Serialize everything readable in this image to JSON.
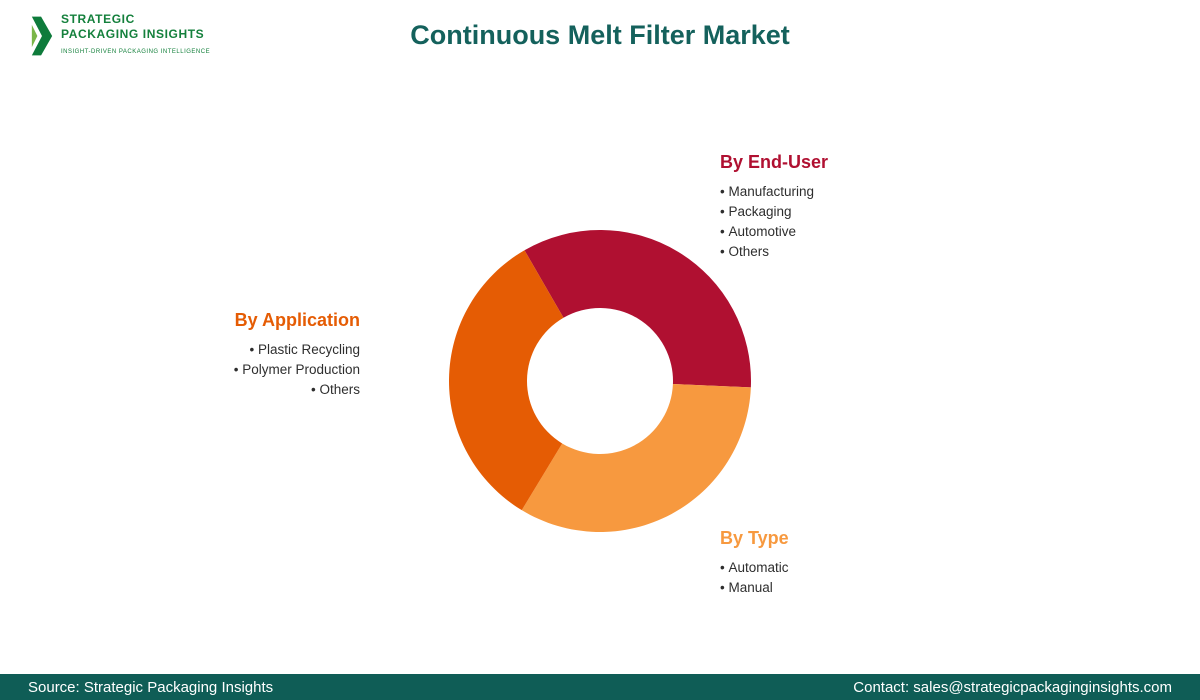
{
  "header": {
    "title": "Continuous Melt Filter Market",
    "logo": {
      "line1": "STRATEGIC",
      "line2": "PACKAGING INSIGHTS",
      "tagline": "INSIGHT-DRIVEN PACKAGING INTELLIGENCE"
    }
  },
  "chart_data": {
    "type": "pie",
    "donut": true,
    "title": "Continuous Melt Filter Market",
    "start_angle_deg": -30,
    "legend_position": "around",
    "segments": [
      {
        "label": "By End-User",
        "value": 34,
        "color": "#b01031",
        "items": [
          "Manufacturing",
          "Packaging",
          "Automotive",
          "Others"
        ]
      },
      {
        "label": "By Type",
        "value": 33,
        "color": "#f7993f",
        "items": [
          "Automatic",
          "Manual"
        ]
      },
      {
        "label": "By Application",
        "value": 33,
        "color": "#e55c04",
        "items": [
          "Plastic Recycling",
          "Polymer Production",
          "Others"
        ]
      }
    ]
  },
  "footer": {
    "source": "Source: Strategic Packaging Insights",
    "contact": "Contact: sales@strategicpackaginginsights.com"
  }
}
